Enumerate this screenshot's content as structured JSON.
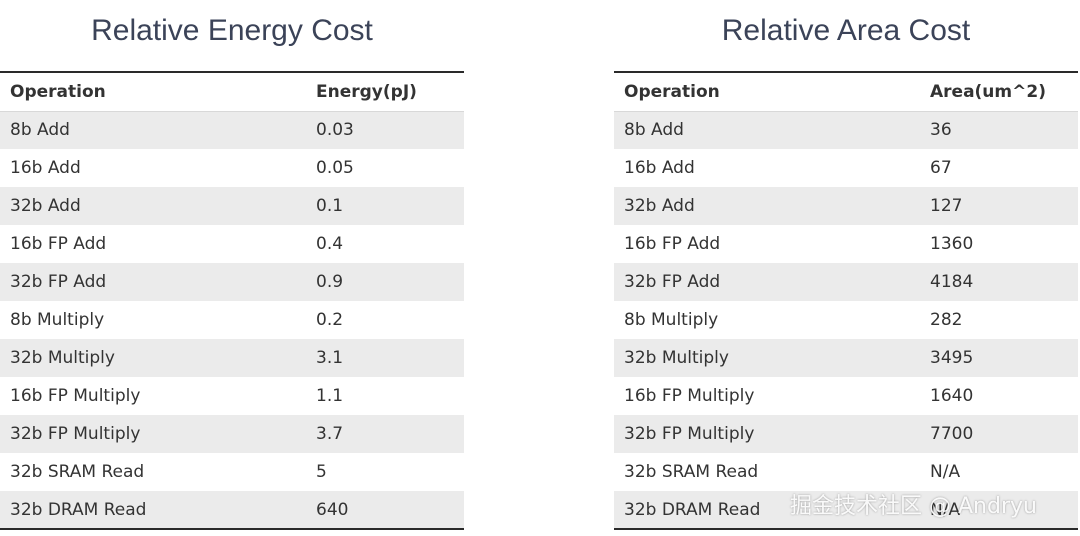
{
  "tables": [
    {
      "title": "Relative Energy Cost",
      "headers": [
        "Operation",
        "Energy(pJ)"
      ],
      "rows": [
        [
          "8b Add",
          "0.03"
        ],
        [
          "16b Add",
          "0.05"
        ],
        [
          "32b Add",
          "0.1"
        ],
        [
          "16b FP Add",
          "0.4"
        ],
        [
          "32b FP Add",
          "0.9"
        ],
        [
          "8b Multiply",
          "0.2"
        ],
        [
          "32b Multiply",
          "3.1"
        ],
        [
          "16b FP Multiply",
          "1.1"
        ],
        [
          "32b FP Multiply",
          "3.7"
        ],
        [
          "32b SRAM Read",
          "5"
        ],
        [
          "32b DRAM Read",
          "640"
        ]
      ]
    },
    {
      "title": "Relative Area Cost",
      "headers": [
        "Operation",
        "Area(um^2)"
      ],
      "rows": [
        [
          "8b Add",
          "36"
        ],
        [
          "16b Add",
          "67"
        ],
        [
          "32b Add",
          "127"
        ],
        [
          "16b FP Add",
          "1360"
        ],
        [
          "32b FP Add",
          "4184"
        ],
        [
          "8b Multiply",
          "282"
        ],
        [
          "32b Multiply",
          "3495"
        ],
        [
          "16b FP Multiply",
          "1640"
        ],
        [
          "32b FP Multiply",
          "7700"
        ],
        [
          "32b SRAM Read",
          "N/A"
        ],
        [
          "32b DRAM Read",
          "N/A"
        ]
      ]
    }
  ],
  "watermark": "掘金技术社区 @ Andryu"
}
